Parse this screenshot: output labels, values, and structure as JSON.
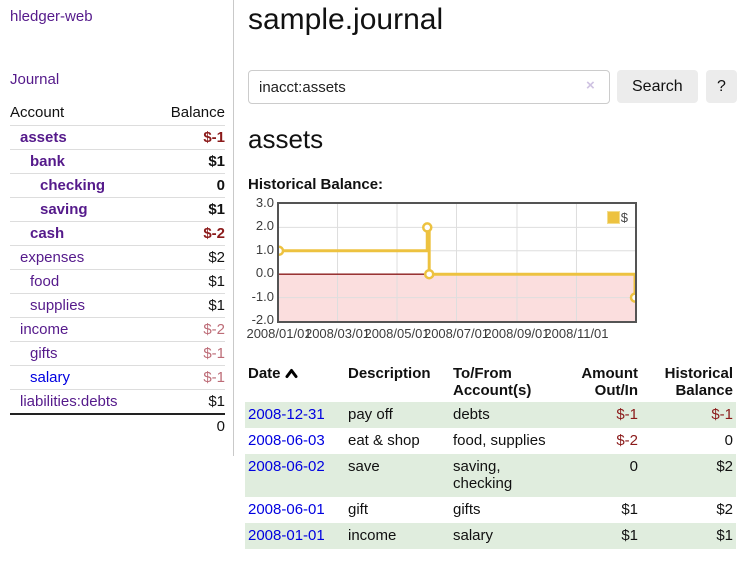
{
  "app": {
    "title": "hledger-web",
    "nav_journal": "Journal"
  },
  "page": {
    "title": "sample.journal",
    "account_heading": "assets",
    "chart_label": "Historical Balance:"
  },
  "search": {
    "value": "inacct:assets",
    "clear_icon": "×",
    "button_label": "Search",
    "help_label": "?"
  },
  "colors": {
    "link_purple": "#551a8b",
    "link_blue": "#0000e0",
    "negative_strong": "#8b1a1a",
    "negative_soft": "#bd6c77",
    "row_green": "#e0edde",
    "chart_gold": "#edc240"
  },
  "sidebar_accounts": {
    "headers": {
      "account": "Account",
      "balance": "Balance"
    },
    "rows": [
      {
        "name": "assets",
        "balance": "$-1",
        "level": 1,
        "bold": true,
        "balance_class": "neg-strong",
        "link": "purple"
      },
      {
        "name": "bank",
        "balance": "$1",
        "level": 2,
        "bold": true,
        "balance_class": "",
        "link": "purple"
      },
      {
        "name": "checking",
        "balance": "0",
        "level": 3,
        "bold": true,
        "balance_class": "",
        "link": "purple"
      },
      {
        "name": "saving",
        "balance": "$1",
        "level": 3,
        "bold": true,
        "balance_class": "",
        "link": "purple"
      },
      {
        "name": "cash",
        "balance": "$-2",
        "level": 2,
        "bold": true,
        "balance_class": "neg-strong",
        "link": "purple"
      },
      {
        "name": "expenses",
        "balance": "$2",
        "level": 1,
        "bold": false,
        "balance_class": "",
        "link": "purple"
      },
      {
        "name": "food",
        "balance": "$1",
        "level": 2,
        "bold": false,
        "balance_class": "",
        "link": "purple"
      },
      {
        "name": "supplies",
        "balance": "$1",
        "level": 2,
        "bold": false,
        "balance_class": "",
        "link": "purple"
      },
      {
        "name": "income",
        "balance": "$-2",
        "level": 1,
        "bold": false,
        "balance_class": "neg-soft",
        "link": "purple"
      },
      {
        "name": "gifts",
        "balance": "$-1",
        "level": 2,
        "bold": false,
        "balance_class": "neg-soft",
        "link": "purple"
      },
      {
        "name": "salary",
        "balance": "$-1",
        "level": 2,
        "bold": false,
        "balance_class": "neg-soft",
        "link": "blue"
      },
      {
        "name": "liabilities:debts",
        "balance": "$1",
        "level": 1,
        "bold": false,
        "balance_class": "",
        "link": "purple"
      }
    ],
    "total": "0"
  },
  "chart_data": {
    "type": "line",
    "title": "Historical Balance:",
    "style": "step-after",
    "series": [
      {
        "name": "$",
        "color": "#edc240",
        "points": [
          {
            "date": "2008-01-01",
            "value": 1
          },
          {
            "date": "2008-06-01",
            "value": 2
          },
          {
            "date": "2008-06-03",
            "value": 0
          },
          {
            "date": "2008-12-31",
            "value": -1
          }
        ]
      }
    ],
    "x_range": [
      "2008-01-01",
      "2008-12-31"
    ],
    "y_range": [
      -2,
      3
    ],
    "x_ticks": [
      "2008/01/01",
      "2008/03/01",
      "2008/05/01",
      "2008/07/01",
      "2008/09/01",
      "2008/11/01"
    ],
    "y_ticks": [
      3.0,
      2.0,
      1.0,
      0.0,
      -1.0,
      -2.0
    ],
    "grid": true,
    "legend_position": "top-right",
    "negative_region_fill": "#fbdede",
    "zero_line_color": "#8b1b1b",
    "grid_color": "#dedede"
  },
  "transactions": {
    "headers": {
      "date": "Date",
      "description": "Description",
      "accounts": "To/From Account(s)",
      "amount": "Amount Out/In",
      "balance": "Historical Balance"
    },
    "rows": [
      {
        "date": "2008-12-31",
        "description": "pay off",
        "accounts": "debts",
        "amount": "$-1",
        "amount_neg": true,
        "balance": "$-1",
        "balance_neg": true
      },
      {
        "date": "2008-06-03",
        "description": "eat & shop",
        "accounts": "food, supplies",
        "amount": "$-2",
        "amount_neg": true,
        "balance": "0",
        "balance_neg": false
      },
      {
        "date": "2008-06-02",
        "description": "save",
        "accounts": "saving, checking",
        "amount": "0",
        "amount_neg": false,
        "balance": "$2",
        "balance_neg": false
      },
      {
        "date": "2008-06-01",
        "description": "gift",
        "accounts": "gifts",
        "amount": "$1",
        "amount_neg": false,
        "balance": "$2",
        "balance_neg": false
      },
      {
        "date": "2008-01-01",
        "description": "income",
        "accounts": "salary",
        "amount": "$1",
        "amount_neg": false,
        "balance": "$1",
        "balance_neg": false
      }
    ]
  }
}
